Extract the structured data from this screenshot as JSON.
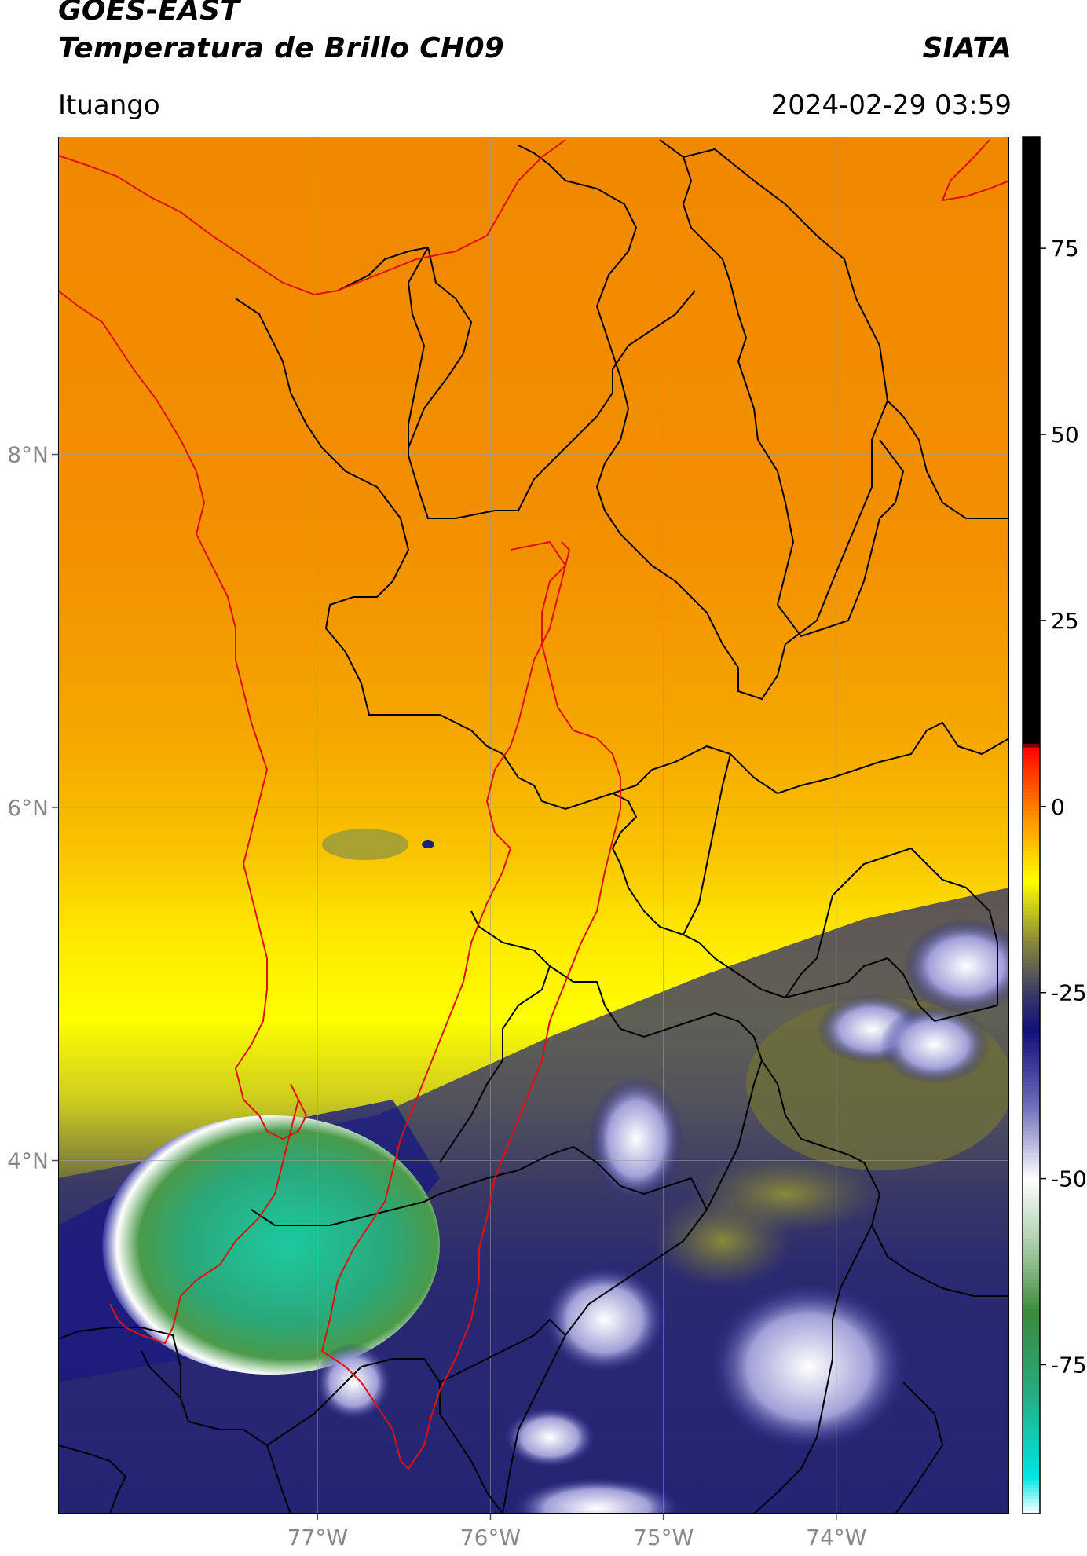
{
  "header": {
    "satellite": "GOES-EAST",
    "product": "Temperatura de Brillo CH09",
    "organization": "SIATA",
    "region": "Ituango",
    "timestamp": "2024-02-29 03:59"
  },
  "map": {
    "lon_range": [
      -78.5,
      -73.0
    ],
    "lat_range": [
      2.0,
      9.8
    ],
    "lon_ticks": [
      {
        "value": -77,
        "label": "77°W"
      },
      {
        "value": -76,
        "label": "76°W"
      },
      {
        "value": -75,
        "label": "75°W"
      },
      {
        "value": -74,
        "label": "74°W"
      }
    ],
    "lat_ticks": [
      {
        "value": 8,
        "label": "8°N"
      },
      {
        "value": 6,
        "label": "6°N"
      },
      {
        "value": 4,
        "label": "4°N"
      }
    ],
    "grid": true,
    "boundary_colors": {
      "departments": "#000000",
      "highlight": "#e01010"
    }
  },
  "colorbar": {
    "range": [
      -95,
      90
    ],
    "ticks": [
      {
        "value": 75,
        "label": "75"
      },
      {
        "value": 50,
        "label": "50"
      },
      {
        "value": 25,
        "label": "25"
      },
      {
        "value": 0,
        "label": "0"
      },
      {
        "value": -25,
        "label": "-25"
      },
      {
        "value": -50,
        "label": "-50"
      },
      {
        "value": -75,
        "label": "-75"
      }
    ],
    "stops": [
      {
        "value": -95,
        "color": "#ffffff"
      },
      {
        "value": -90,
        "color": "#00e5e5"
      },
      {
        "value": -78,
        "color": "#2aa87a"
      },
      {
        "value": -68,
        "color": "#3a8a3a"
      },
      {
        "value": -60,
        "color": "#9dc69a"
      },
      {
        "value": -50,
        "color": "#ffffff"
      },
      {
        "value": -40,
        "color": "#6a6ab8"
      },
      {
        "value": -30,
        "color": "#10107a"
      },
      {
        "value": -25,
        "color": "#3a3a66"
      },
      {
        "value": -18,
        "color": "#8a8a3a"
      },
      {
        "value": -10,
        "color": "#ffff00"
      },
      {
        "value": -2,
        "color": "#ff9900"
      },
      {
        "value": 5,
        "color": "#ff3300"
      },
      {
        "value": 8,
        "color": "#ff0000"
      },
      {
        "value": 8.5,
        "color": "#000000"
      },
      {
        "value": 90,
        "color": "#000000"
      }
    ]
  }
}
